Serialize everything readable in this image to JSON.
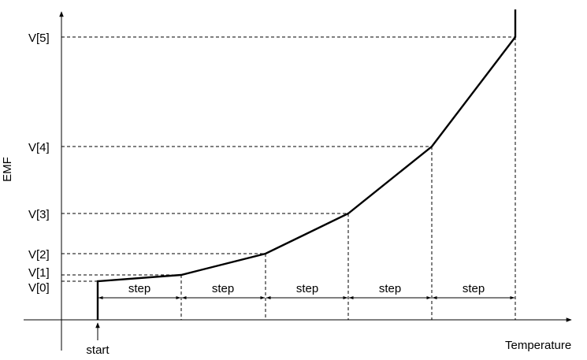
{
  "diagram": {
    "y_axis_label": "EMF",
    "x_axis_label": "Temperature",
    "start_label": "start",
    "step_label": "step",
    "levels": [
      "V[0]",
      "V[1]",
      "V[2]",
      "V[3]",
      "V[4]",
      "V[5]"
    ],
    "step_count": 5
  },
  "chart_data": {
    "type": "line",
    "xlabel": "Temperature",
    "ylabel": "EMF",
    "ytick_labels": [
      "V[0]",
      "V[1]",
      "V[2]",
      "V[3]",
      "V[4]",
      "V[5]"
    ],
    "series": [
      {
        "points_in_steps": [
          [
            0,
            0
          ],
          [
            1,
            1
          ],
          [
            2,
            2
          ],
          [
            3,
            3
          ],
          [
            4,
            4
          ],
          [
            5,
            5
          ]
        ],
        "y_levels": [
          "V[0]",
          "V[1]",
          "V[2]",
          "V[3]",
          "V[4]",
          "V[5]"
        ]
      }
    ],
    "grid": false,
    "annotations": [
      "start",
      "step",
      "step",
      "step",
      "step",
      "step"
    ]
  }
}
